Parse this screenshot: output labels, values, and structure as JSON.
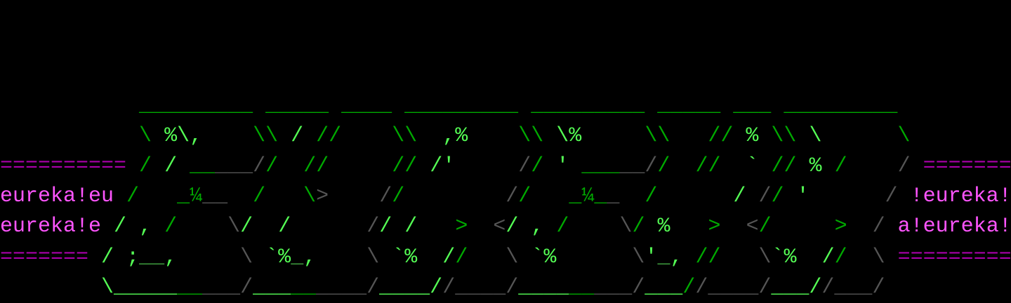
{
  "palette": {
    "g": "#00aa00",
    "b": "#55ff55",
    "h": "#44aa44",
    "d": "#555555",
    "m": "#aa00aa",
    "p": "#ff55ff"
  },
  "rows": [
    [],
    [],
    [],
    [
      [
        "           ",
        ""
      ],
      [
        "_________",
        "g"
      ],
      [
        " ",
        ""
      ],
      [
        "_____",
        "g"
      ],
      [
        " ",
        ""
      ],
      [
        "____",
        "g"
      ],
      [
        " ",
        ""
      ],
      [
        "_________",
        "g"
      ],
      [
        " ",
        ""
      ],
      [
        "_________",
        "g"
      ],
      [
        " ",
        ""
      ],
      [
        "_____",
        "g"
      ],
      [
        " ",
        ""
      ],
      [
        "___",
        "g"
      ],
      [
        " ",
        ""
      ],
      [
        "_________",
        "g"
      ]
    ],
    [
      [
        "           ",
        ""
      ],
      [
        "\\",
        "g"
      ],
      [
        " ",
        ""
      ],
      [
        "%\\,",
        "b"
      ],
      [
        "    ",
        ""
      ],
      [
        "\\\\",
        "g"
      ],
      [
        " ",
        ""
      ],
      [
        "/",
        "b"
      ],
      [
        " ",
        ""
      ],
      [
        "//",
        "g"
      ],
      [
        "    ",
        ""
      ],
      [
        "\\\\",
        "g"
      ],
      [
        "  ",
        ""
      ],
      [
        ",%",
        "b"
      ],
      [
        "    ",
        ""
      ],
      [
        "\\\\",
        "g"
      ],
      [
        " ",
        ""
      ],
      [
        "\\%",
        "b"
      ],
      [
        "     ",
        ""
      ],
      [
        "\\\\",
        "g"
      ],
      [
        "   ",
        ""
      ],
      [
        "//",
        "g"
      ],
      [
        " ",
        ""
      ],
      [
        "%",
        "b"
      ],
      [
        " ",
        ""
      ],
      [
        "\\\\",
        "g"
      ],
      [
        " ",
        ""
      ],
      [
        "\\",
        "b"
      ],
      [
        "      ",
        ""
      ],
      [
        "\\",
        "g"
      ]
    ],
    [
      [
        "==========",
        "m"
      ],
      [
        " ",
        ""
      ],
      [
        "/",
        "g"
      ],
      [
        " ",
        ""
      ],
      [
        "/",
        "b"
      ],
      [
        " ",
        ""
      ],
      [
        "__",
        "g"
      ],
      [
        "___",
        "d"
      ],
      [
        "/",
        "d"
      ],
      [
        "/",
        "g"
      ],
      [
        "  ",
        ""
      ],
      [
        "//",
        "g"
      ],
      [
        "     ",
        ""
      ],
      [
        "//",
        "g"
      ],
      [
        " ",
        ""
      ],
      [
        "/'",
        "b"
      ],
      [
        "     ",
        ""
      ],
      [
        "/",
        "d"
      ],
      [
        "/",
        "g"
      ],
      [
        " ",
        ""
      ],
      [
        "'",
        "b"
      ],
      [
        " ",
        ""
      ],
      [
        "___",
        "g"
      ],
      [
        "__",
        "d"
      ],
      [
        "/",
        "d"
      ],
      [
        "/",
        "g"
      ],
      [
        "  ",
        ""
      ],
      [
        "//",
        "g"
      ],
      [
        "  ",
        ""
      ],
      [
        "`",
        "b"
      ],
      [
        " ",
        ""
      ],
      [
        "//",
        "g"
      ],
      [
        " ",
        ""
      ],
      [
        "%",
        "b"
      ],
      [
        " ",
        ""
      ],
      [
        "/",
        "g"
      ],
      [
        "    ",
        ""
      ],
      [
        "/",
        "d"
      ],
      [
        " ",
        ""
      ],
      [
        "=======",
        "m"
      ]
    ],
    [
      [
        "eureka!eu",
        "p"
      ],
      [
        " ",
        ""
      ],
      [
        "/",
        "g"
      ],
      [
        "   ",
        ""
      ],
      [
        "_¼",
        "g"
      ],
      [
        "__",
        "d"
      ],
      [
        "  ",
        ""
      ],
      [
        "/",
        "g"
      ],
      [
        "   ",
        ""
      ],
      [
        "\\",
        "g"
      ],
      [
        ">",
        "d"
      ],
      [
        "    ",
        ""
      ],
      [
        "/",
        "d"
      ],
      [
        "/",
        "g"
      ],
      [
        "        ",
        ""
      ],
      [
        "/",
        "d"
      ],
      [
        "/",
        "g"
      ],
      [
        "   ",
        ""
      ],
      [
        "_¼_",
        "g"
      ],
      [
        "_",
        "d"
      ],
      [
        "  ",
        ""
      ],
      [
        "/",
        "g"
      ],
      [
        "      ",
        ""
      ],
      [
        "/",
        "b"
      ],
      [
        " ",
        ""
      ],
      [
        "/",
        "d"
      ],
      [
        "/",
        "g"
      ],
      [
        " ",
        ""
      ],
      [
        "'",
        "b"
      ],
      [
        "      ",
        ""
      ],
      [
        "/",
        "d"
      ],
      [
        " ",
        ""
      ],
      [
        "!eureka!",
        "p"
      ]
    ],
    [
      [
        "eureka!e",
        "p"
      ],
      [
        " ",
        ""
      ],
      [
        "/",
        "b"
      ],
      [
        " ",
        ""
      ],
      [
        ",",
        "b"
      ],
      [
        " ",
        ""
      ],
      [
        "/",
        "g"
      ],
      [
        "    ",
        ""
      ],
      [
        "\\",
        "d"
      ],
      [
        "/",
        "b"
      ],
      [
        "  ",
        ""
      ],
      [
        "/",
        "b"
      ],
      [
        "      ",
        ""
      ],
      [
        "/",
        "d"
      ],
      [
        "/",
        "b"
      ],
      [
        " ",
        ""
      ],
      [
        "/",
        "b"
      ],
      [
        "   ",
        ""
      ],
      [
        ">",
        "g"
      ],
      [
        "  ",
        ""
      ],
      [
        "<",
        "d"
      ],
      [
        "/",
        "b"
      ],
      [
        " ",
        ""
      ],
      [
        ",",
        "b"
      ],
      [
        " ",
        ""
      ],
      [
        "/",
        "g"
      ],
      [
        "    ",
        ""
      ],
      [
        "\\",
        "d"
      ],
      [
        "/",
        "g"
      ],
      [
        " ",
        ""
      ],
      [
        "%",
        "b"
      ],
      [
        "   ",
        ""
      ],
      [
        ">",
        "g"
      ],
      [
        "  ",
        ""
      ],
      [
        "<",
        "d"
      ],
      [
        "/",
        "g"
      ],
      [
        "     ",
        ""
      ],
      [
        ">",
        "g"
      ],
      [
        "  ",
        ""
      ],
      [
        "/",
        "d"
      ],
      [
        " ",
        ""
      ],
      [
        "a!eureka!",
        "p"
      ]
    ],
    [
      [
        "=======",
        "m"
      ],
      [
        " ",
        ""
      ],
      [
        "/",
        "b"
      ],
      [
        " ",
        ""
      ],
      [
        ";",
        "b"
      ],
      [
        "__",
        "h"
      ],
      [
        ",",
        "b"
      ],
      [
        "     ",
        ""
      ],
      [
        "\\",
        "d"
      ],
      [
        " ",
        ""
      ],
      [
        "`%",
        "b"
      ],
      [
        "_",
        "h"
      ],
      [
        ",",
        "b"
      ],
      [
        "    ",
        ""
      ],
      [
        "\\",
        "d"
      ],
      [
        " ",
        ""
      ],
      [
        "`%",
        "b"
      ],
      [
        "  ",
        ""
      ],
      [
        "/",
        "b"
      ],
      [
        "/",
        "g"
      ],
      [
        "   ",
        ""
      ],
      [
        "\\",
        "d"
      ],
      [
        " ",
        ""
      ],
      [
        "`%",
        "b"
      ],
      [
        "      ",
        ""
      ],
      [
        "\\",
        "d"
      ],
      [
        "'",
        "b"
      ],
      [
        "_",
        "h"
      ],
      [
        ",",
        "b"
      ],
      [
        " ",
        ""
      ],
      [
        "//",
        "g"
      ],
      [
        "   ",
        ""
      ],
      [
        "\\",
        "d"
      ],
      [
        "`%",
        "b"
      ],
      [
        "  ",
        ""
      ],
      [
        "/",
        "b"
      ],
      [
        "/",
        "g"
      ],
      [
        "  ",
        ""
      ],
      [
        "\\",
        "d"
      ],
      [
        " ",
        ""
      ],
      [
        "=========",
        "m"
      ]
    ],
    [
      [
        "        ",
        ""
      ],
      [
        "\\_____",
        "b"
      ],
      [
        "__",
        "g"
      ],
      [
        "___",
        "d"
      ],
      [
        "/",
        "d"
      ],
      [
        "___",
        "b"
      ],
      [
        "__",
        "g"
      ],
      [
        "____",
        "d"
      ],
      [
        "/",
        "d"
      ],
      [
        "____/",
        "b"
      ],
      [
        "/",
        "d"
      ],
      [
        "____/",
        "d"
      ],
      [
        "____",
        "b"
      ],
      [
        "__",
        "g"
      ],
      [
        "___",
        "d"
      ],
      [
        "/",
        "d"
      ],
      [
        "___",
        "b"
      ],
      [
        "/",
        "g"
      ],
      [
        "/",
        "d"
      ],
      [
        "____/",
        "d"
      ],
      [
        "___/",
        "b"
      ],
      [
        "/",
        "d"
      ],
      [
        "___/",
        "d"
      ]
    ]
  ]
}
